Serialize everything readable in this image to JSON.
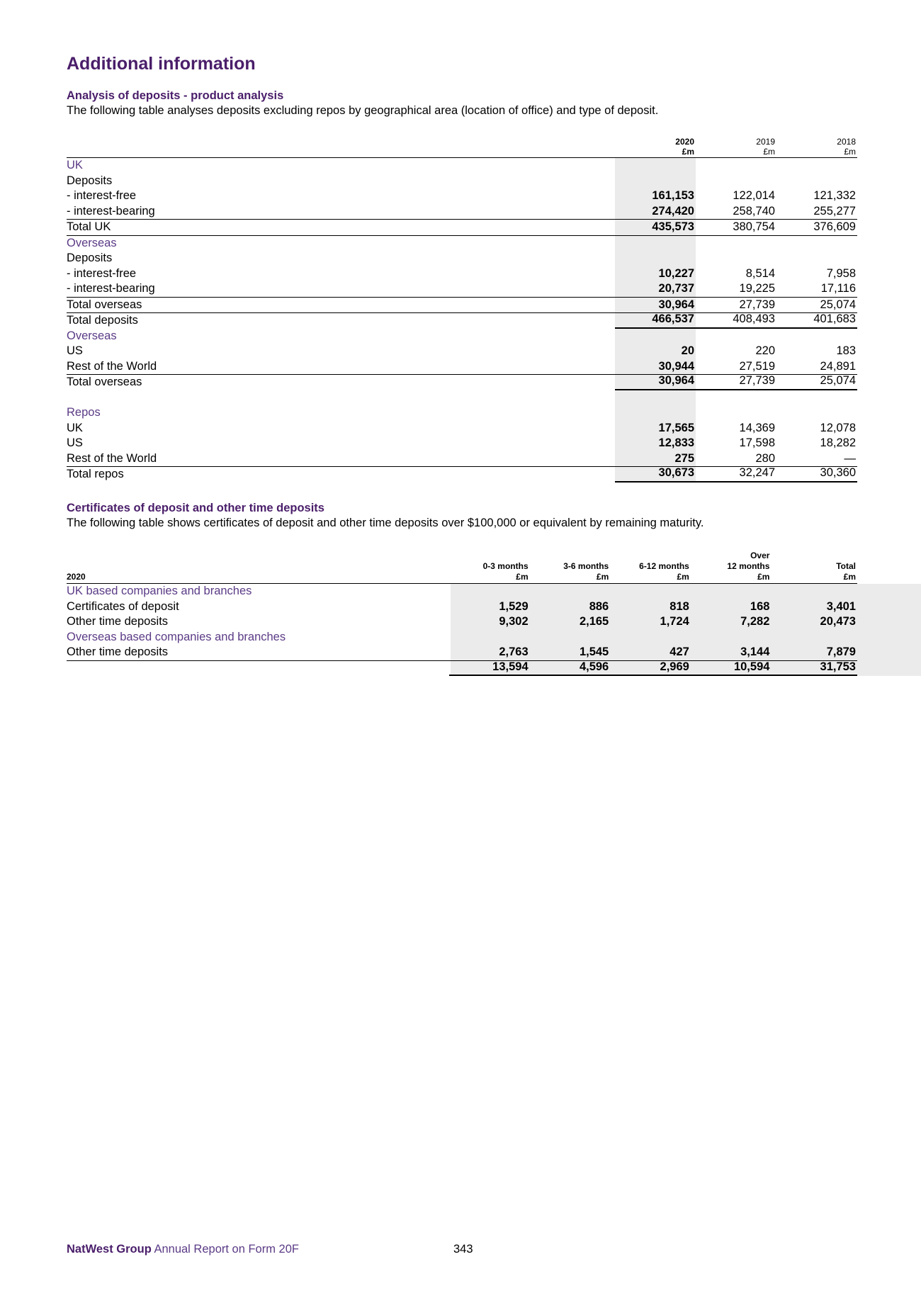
{
  "page_title": "Additional information",
  "section1": {
    "heading": "Analysis of deposits - product analysis",
    "description": "The following table analyses deposits excluding repos by geographical area (location of office) and type of deposit.",
    "columns": [
      {
        "year": "2020",
        "unit": "£m"
      },
      {
        "year": "2019",
        "unit": "£m"
      },
      {
        "year": "2018",
        "unit": "£m"
      }
    ],
    "rows": [
      {
        "label": "UK",
        "kind": "cat"
      },
      {
        "label": "Deposits",
        "kind": "text"
      },
      {
        "label": "- interest-free",
        "kind": "data",
        "values": [
          "161,153",
          "122,014",
          "121,332"
        ]
      },
      {
        "label": "- interest-bearing",
        "kind": "data",
        "values": [
          "274,420",
          "258,740",
          "255,277"
        ],
        "line": true
      },
      {
        "label": "Total UK",
        "kind": "data",
        "values": [
          "435,573",
          "380,754",
          "376,609"
        ],
        "line": true
      },
      {
        "label": "Overseas",
        "kind": "cat"
      },
      {
        "label": "Deposits",
        "kind": "text"
      },
      {
        "label": "- interest-free",
        "kind": "data",
        "values": [
          "10,227",
          "8,514",
          "7,958"
        ]
      },
      {
        "label": "- interest-bearing",
        "kind": "data",
        "values": [
          "20,737",
          "19,225",
          "17,116"
        ],
        "line": true
      },
      {
        "label": "Total overseas",
        "kind": "data",
        "values": [
          "30,964",
          "27,739",
          "25,074"
        ],
        "line": true
      },
      {
        "label": "Total deposits",
        "kind": "data",
        "values": [
          "466,537",
          "408,493",
          "401,683"
        ],
        "underline_values": true
      },
      {
        "label": "Overseas",
        "kind": "cat"
      },
      {
        "label": "US",
        "kind": "data",
        "values": [
          "20",
          "220",
          "183"
        ]
      },
      {
        "label": "Rest of the World",
        "kind": "data",
        "values": [
          "30,944",
          "27,519",
          "24,891"
        ],
        "line": true
      },
      {
        "label": "Total overseas",
        "kind": "data",
        "values": [
          "30,964",
          "27,739",
          "25,074"
        ],
        "underline_values": true
      },
      {
        "label": "",
        "kind": "gap"
      },
      {
        "label": "Repos",
        "kind": "cat"
      },
      {
        "label": "UK",
        "kind": "data",
        "values": [
          "17,565",
          "14,369",
          "12,078"
        ]
      },
      {
        "label": "US",
        "kind": "data",
        "values": [
          "12,833",
          "17,598",
          "18,282"
        ]
      },
      {
        "label": "Rest of the World",
        "kind": "data",
        "values": [
          "275",
          "280",
          "—"
        ],
        "line": true
      },
      {
        "label": "Total repos",
        "kind": "data",
        "values": [
          "30,673",
          "32,247",
          "30,360"
        ],
        "underline_values": true
      }
    ]
  },
  "section2": {
    "heading": "Certificates of deposit and other time deposits",
    "description": "The following table shows certificates of deposit and other time deposits over $100,000 or equivalent by remaining maturity.",
    "year_label": "2020",
    "columns": [
      {
        "label": "0-3 months",
        "unit": "£m"
      },
      {
        "label": "3-6 months",
        "unit": "£m"
      },
      {
        "label": "6-12 months",
        "unit": "£m"
      },
      {
        "label": "Over 12 months",
        "line1": "Over",
        "line2": "12 months",
        "unit": "£m"
      },
      {
        "label": "Total",
        "unit": "£m"
      }
    ],
    "rows": [
      {
        "label": "UK based companies and branches",
        "kind": "cat"
      },
      {
        "label": "Certificates of deposit",
        "kind": "data",
        "values": [
          "1,529",
          "886",
          "818",
          "168",
          "3,401"
        ]
      },
      {
        "label": "Other time deposits",
        "kind": "data",
        "values": [
          "9,302",
          "2,165",
          "1,724",
          "7,282",
          "20,473"
        ]
      },
      {
        "label": "Overseas based companies and branches",
        "kind": "cat"
      },
      {
        "label": "Other time deposits",
        "kind": "data",
        "values": [
          "2,763",
          "1,545",
          "427",
          "3,144",
          "7,879"
        ],
        "line": true
      },
      {
        "label": "",
        "kind": "data",
        "values": [
          "13,594",
          "4,596",
          "2,969",
          "10,594",
          "31,753"
        ],
        "underline_values": true
      }
    ]
  },
  "footer": {
    "brand": "NatWest Group",
    "text": " Annual Report on Form 20F",
    "page_number": "343"
  }
}
